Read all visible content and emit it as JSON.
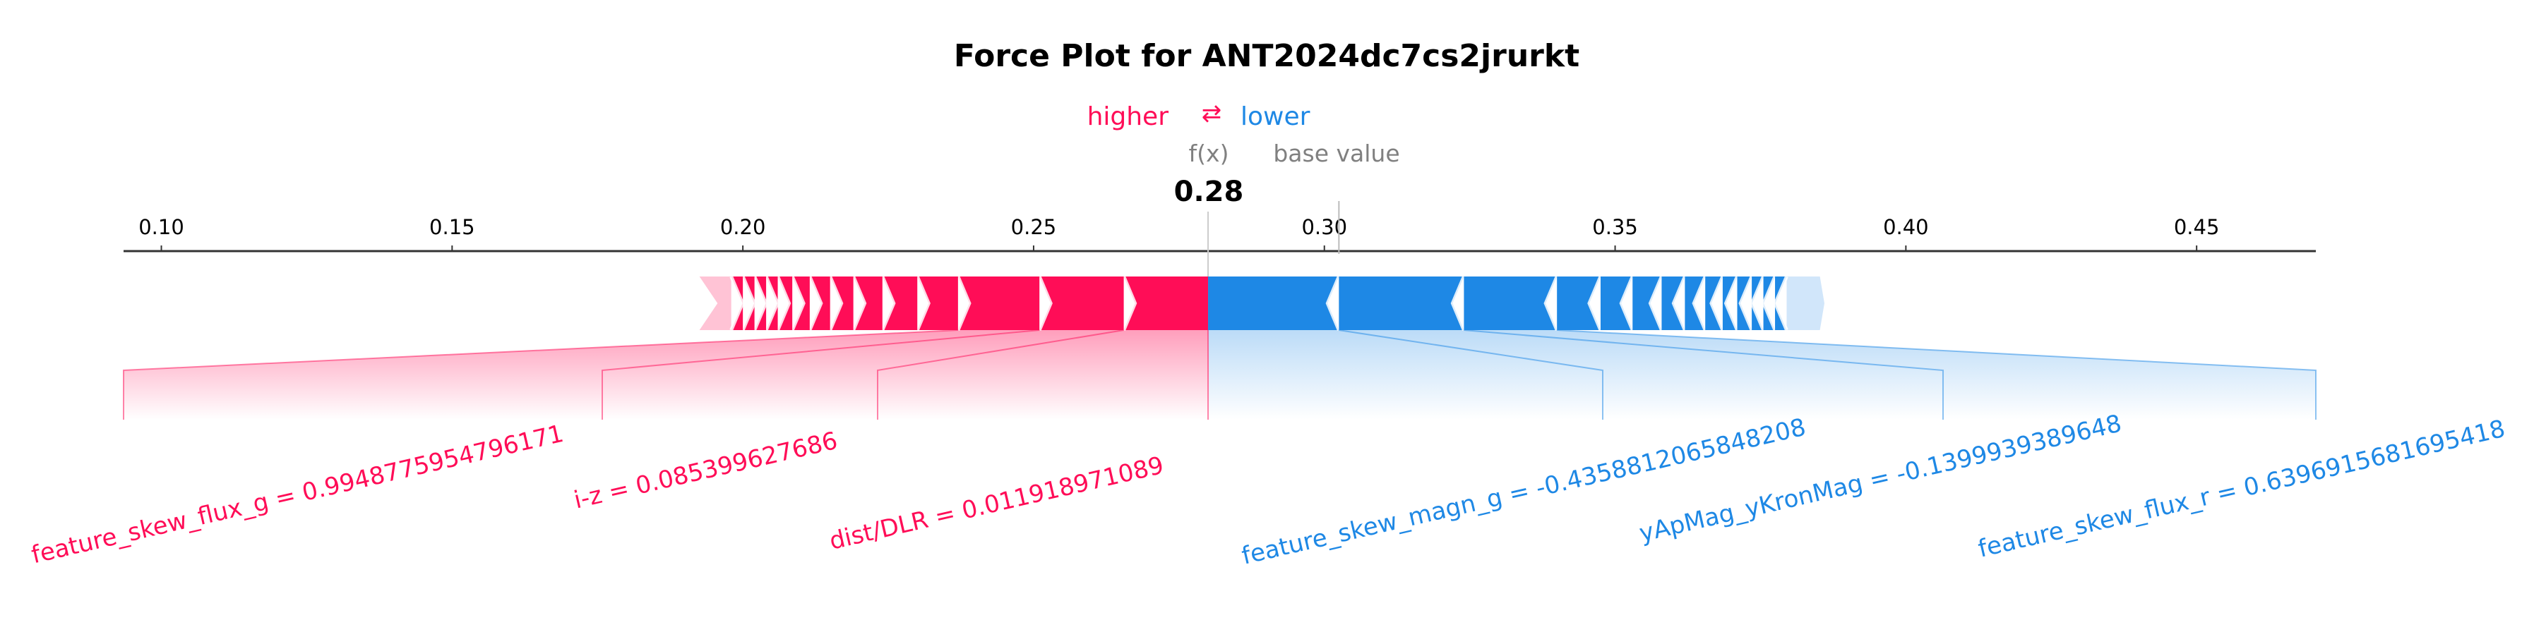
{
  "chart_data": {
    "type": "force",
    "title": "Force Plot for ANT2024dc7cs2jrurkt",
    "legend": {
      "higher": "higher",
      "lower": "lower",
      "arrow": "⇄"
    },
    "output_label": "f(x)",
    "base_value_label": "base value",
    "output_value": 0.28,
    "output_value_text": "0.28",
    "base_value": 0.3025,
    "xlim": [
      0.0935,
      0.4705
    ],
    "ticks": [
      0.1,
      0.15,
      0.2,
      0.25,
      0.3,
      0.35,
      0.4,
      0.45
    ],
    "tick_labels": [
      "0.10",
      "0.15",
      "0.20",
      "0.25",
      "0.30",
      "0.35",
      "0.40",
      "0.45"
    ],
    "positive_segments": [
      {
        "start": 0.2655,
        "end": 0.28,
        "label": "dist/DLR = 0.011918971089"
      },
      {
        "start": 0.251,
        "end": 0.2655,
        "label": "i-z = 0.085399627686"
      },
      {
        "start": 0.237,
        "end": 0.251,
        "label": "feature_skew_flux_g = 0.994877595479617​1"
      },
      {
        "start": 0.23,
        "end": 0.237,
        "label": ""
      },
      {
        "start": 0.224,
        "end": 0.23,
        "label": ""
      },
      {
        "start": 0.219,
        "end": 0.224,
        "label": ""
      },
      {
        "start": 0.215,
        "end": 0.219,
        "label": ""
      },
      {
        "start": 0.2115,
        "end": 0.215,
        "label": ""
      },
      {
        "start": 0.2085,
        "end": 0.2115,
        "label": ""
      },
      {
        "start": 0.206,
        "end": 0.2085,
        "label": ""
      },
      {
        "start": 0.204,
        "end": 0.206,
        "label": ""
      },
      {
        "start": 0.202,
        "end": 0.204,
        "label": ""
      },
      {
        "start": 0.2,
        "end": 0.202,
        "label": ""
      },
      {
        "start": 0.198,
        "end": 0.2,
        "label": ""
      }
    ],
    "negative_segments": [
      {
        "start": 0.28,
        "end": 0.3025,
        "label": "feature_skew_magn_g = -0.4358812065848208"
      },
      {
        "start": 0.3025,
        "end": 0.324,
        "label": "yApMag_yKronMag = -0.139993938964​8"
      },
      {
        "start": 0.324,
        "end": 0.34,
        "label": "feature_skew_flux_r = 0.6396915681695418"
      },
      {
        "start": 0.34,
        "end": 0.3475,
        "label": ""
      },
      {
        "start": 0.3475,
        "end": 0.353,
        "label": ""
      },
      {
        "start": 0.353,
        "end": 0.358,
        "label": ""
      },
      {
        "start": 0.358,
        "end": 0.362,
        "label": ""
      },
      {
        "start": 0.362,
        "end": 0.3655,
        "label": ""
      },
      {
        "start": 0.3655,
        "end": 0.3685,
        "label": ""
      },
      {
        "start": 0.3685,
        "end": 0.371,
        "label": ""
      },
      {
        "start": 0.371,
        "end": 0.3735,
        "label": ""
      },
      {
        "start": 0.3735,
        "end": 0.3755,
        "label": ""
      },
      {
        "start": 0.3755,
        "end": 0.3775,
        "label": ""
      },
      {
        "start": 0.3775,
        "end": 0.3795,
        "label": ""
      }
    ],
    "tails": {
      "positive_faded_end": 0.198,
      "negative_faded_end": 0.384
    },
    "colors": {
      "positive": "#ff0d57",
      "negative": "#1e88e5",
      "positive_faded": "#ffc3d5",
      "negative_faded": "#d1e6fa"
    }
  }
}
